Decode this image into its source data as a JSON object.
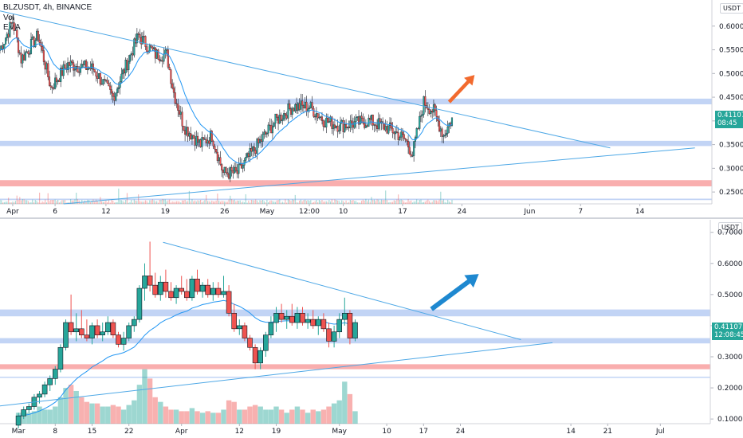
{
  "header": {
    "symbol_line": "BLZUSDT, 4h, BINANCE",
    "indicator_1": "Vol",
    "indicator_2": "EMA"
  },
  "colors": {
    "up": "#26a69a",
    "down": "#ef5350",
    "ema": "#2196f3",
    "trendline": "#4ea8e6",
    "support_zone": "#b7cdf3",
    "red_zone": "#f8a5a5",
    "arrow_top": "#f26a2e",
    "arrow_bottom": "#1e88d0"
  },
  "chart_data": [
    {
      "type": "candlestick",
      "name": "top",
      "unit": "USDT",
      "price_badge": {
        "price": "0.41107",
        "time": "08:45"
      },
      "y_ticks": [
        "0.60000",
        "0.55000",
        "0.50000",
        "0.45000",
        "0.40000",
        "0.35000",
        "0.30000",
        "0.25000"
      ],
      "y_tick_values": [
        0.6,
        0.55,
        0.5,
        0.45,
        0.4,
        0.35,
        0.3,
        0.25
      ],
      "ylim": [
        0.225,
        0.645
      ],
      "x_ticks": [
        "Apr",
        "6",
        "12",
        "19",
        "26",
        "May",
        "12:00",
        "10",
        "17",
        "24",
        "Jun",
        "7",
        "14"
      ],
      "x_tick_days": [
        0,
        5,
        11,
        18,
        25,
        30,
        35,
        39,
        46,
        53,
        61,
        67,
        74
      ],
      "xlim_days": [
        -1.5,
        82.5
      ],
      "zones": [
        {
          "kind": "blue",
          "low": 0.435,
          "high": 0.447
        },
        {
          "kind": "blue",
          "low": 0.347,
          "high": 0.358
        },
        {
          "kind": "red",
          "low": 0.262,
          "high": 0.275
        },
        {
          "kind": "blue",
          "low": 0.233,
          "high": 0.236
        }
      ],
      "trendlines": [
        {
          "from": [
            -1.5,
            0.632
          ],
          "to": [
            70.5,
            0.343
          ]
        },
        {
          "from": [
            6.0,
            0.225
          ],
          "to": [
            80.5,
            0.343
          ]
        }
      ],
      "arrow": {
        "from": [
          51.5,
          0.44
        ],
        "to": [
          54.5,
          0.497
        ],
        "color": "#f26a2e"
      },
      "candles_per_day": 6,
      "start_day": -1.5,
      "volume_max": 0.065,
      "vol_band": [
        0.225,
        0.275
      ],
      "waypoints": [
        [
          0,
          0.55
        ],
        [
          9,
          0.61
        ],
        [
          15,
          0.53
        ],
        [
          27,
          0.58
        ],
        [
          36,
          0.47
        ],
        [
          48,
          0.52
        ],
        [
          66,
          0.51
        ],
        [
          80,
          0.45
        ],
        [
          98,
          0.58
        ],
        [
          110,
          0.54
        ],
        [
          118,
          0.54
        ],
        [
          123,
          0.46
        ],
        [
          130,
          0.39
        ],
        [
          142,
          0.35
        ],
        [
          150,
          0.37
        ],
        [
          158,
          0.29
        ],
        [
          168,
          0.29
        ],
        [
          180,
          0.34
        ],
        [
          195,
          0.4
        ],
        [
          207,
          0.43
        ],
        [
          219,
          0.43
        ],
        [
          230,
          0.4
        ],
        [
          241,
          0.39
        ],
        [
          262,
          0.4
        ],
        [
          278,
          0.38
        ],
        [
          287,
          0.36
        ],
        [
          292,
          0.33
        ],
        [
          300,
          0.44
        ],
        [
          307,
          0.42
        ],
        [
          314,
          0.37
        ],
        [
          321,
          0.41
        ]
      ]
    },
    {
      "type": "candlestick",
      "name": "bottom",
      "unit": "USDT",
      "price_badge": {
        "price": "0.41107",
        "time": "12:08:45"
      },
      "y_ticks": [
        "0.70000",
        "0.60000",
        "0.50000",
        "0.40000",
        "0.30000",
        "0.20000",
        "0.10000"
      ],
      "y_tick_values": [
        0.7,
        0.6,
        0.5,
        0.4,
        0.3,
        0.2,
        0.1
      ],
      "ylim": [
        0.085,
        0.73
      ],
      "x_ticks": [
        "Mar",
        "8",
        "15",
        "22",
        "Apr",
        "12",
        "19",
        "May",
        "10",
        "17",
        "24",
        "14",
        "21",
        "Jul"
      ],
      "x_tick_days": [
        0,
        7,
        14,
        21,
        31,
        42,
        49,
        61,
        70,
        77,
        84,
        105,
        112,
        122
      ],
      "xlim_days": [
        -3.5,
        131.5
      ],
      "zones": [
        {
          "kind": "blue",
          "low": 0.43,
          "high": 0.452
        },
        {
          "kind": "blue",
          "low": 0.343,
          "high": 0.36
        },
        {
          "kind": "red",
          "low": 0.26,
          "high": 0.276
        },
        {
          "kind": "blue",
          "low": 0.234,
          "high": 0.236
        }
      ],
      "trendlines": [
        {
          "from": [
            27.5,
            0.668
          ],
          "to": [
            95.5,
            0.355
          ]
        },
        {
          "from": [
            -3.5,
            0.142
          ],
          "to": [
            101.5,
            0.345
          ]
        }
      ],
      "arrow": {
        "from": [
          78.5,
          0.453
        ],
        "to": [
          87.5,
          0.566
        ],
        "color": "#1e88d0"
      },
      "daily_candles": [
        {
          "o": 0.08,
          "h": 0.12,
          "l": 0.07,
          "c": 0.11
        },
        {
          "o": 0.11,
          "h": 0.14,
          "l": 0.1,
          "c": 0.13
        },
        {
          "o": 0.13,
          "h": 0.15,
          "l": 0.12,
          "c": 0.14
        },
        {
          "o": 0.14,
          "h": 0.18,
          "l": 0.13,
          "c": 0.17
        },
        {
          "o": 0.17,
          "h": 0.19,
          "l": 0.15,
          "c": 0.18
        },
        {
          "o": 0.18,
          "h": 0.22,
          "l": 0.17,
          "c": 0.21
        },
        {
          "o": 0.21,
          "h": 0.24,
          "l": 0.19,
          "c": 0.23
        },
        {
          "o": 0.23,
          "h": 0.27,
          "l": 0.21,
          "c": 0.26
        },
        {
          "o": 0.26,
          "h": 0.34,
          "l": 0.25,
          "c": 0.33
        },
        {
          "o": 0.33,
          "h": 0.42,
          "l": 0.32,
          "c": 0.41
        },
        {
          "o": 0.41,
          "h": 0.5,
          "l": 0.37,
          "c": 0.38
        },
        {
          "o": 0.38,
          "h": 0.44,
          "l": 0.35,
          "c": 0.39
        },
        {
          "o": 0.39,
          "h": 0.45,
          "l": 0.36,
          "c": 0.37
        },
        {
          "o": 0.37,
          "h": 0.42,
          "l": 0.35,
          "c": 0.36
        },
        {
          "o": 0.36,
          "h": 0.41,
          "l": 0.34,
          "c": 0.4
        },
        {
          "o": 0.4,
          "h": 0.42,
          "l": 0.36,
          "c": 0.37
        },
        {
          "o": 0.37,
          "h": 0.41,
          "l": 0.35,
          "c": 0.38
        },
        {
          "o": 0.38,
          "h": 0.43,
          "l": 0.37,
          "c": 0.41
        },
        {
          "o": 0.41,
          "h": 0.42,
          "l": 0.36,
          "c": 0.37
        },
        {
          "o": 0.37,
          "h": 0.38,
          "l": 0.33,
          "c": 0.34
        },
        {
          "o": 0.34,
          "h": 0.38,
          "l": 0.32,
          "c": 0.36
        },
        {
          "o": 0.36,
          "h": 0.41,
          "l": 0.35,
          "c": 0.4
        },
        {
          "o": 0.4,
          "h": 0.43,
          "l": 0.38,
          "c": 0.42
        },
        {
          "o": 0.42,
          "h": 0.53,
          "l": 0.41,
          "c": 0.52
        },
        {
          "o": 0.52,
          "h": 0.6,
          "l": 0.48,
          "c": 0.56
        },
        {
          "o": 0.56,
          "h": 0.67,
          "l": 0.51,
          "c": 0.53
        },
        {
          "o": 0.53,
          "h": 0.57,
          "l": 0.49,
          "c": 0.5
        },
        {
          "o": 0.5,
          "h": 0.56,
          "l": 0.48,
          "c": 0.54
        },
        {
          "o": 0.54,
          "h": 0.58,
          "l": 0.49,
          "c": 0.51
        },
        {
          "o": 0.51,
          "h": 0.54,
          "l": 0.48,
          "c": 0.49
        },
        {
          "o": 0.49,
          "h": 0.53,
          "l": 0.47,
          "c": 0.52
        },
        {
          "o": 0.52,
          "h": 0.56,
          "l": 0.5,
          "c": 0.51
        },
        {
          "o": 0.51,
          "h": 0.55,
          "l": 0.48,
          "c": 0.49
        },
        {
          "o": 0.49,
          "h": 0.56,
          "l": 0.48,
          "c": 0.55
        },
        {
          "o": 0.55,
          "h": 0.58,
          "l": 0.5,
          "c": 0.51
        },
        {
          "o": 0.51,
          "h": 0.54,
          "l": 0.49,
          "c": 0.53
        },
        {
          "o": 0.53,
          "h": 0.55,
          "l": 0.49,
          "c": 0.5
        },
        {
          "o": 0.5,
          "h": 0.54,
          "l": 0.48,
          "c": 0.52
        },
        {
          "o": 0.52,
          "h": 0.54,
          "l": 0.49,
          "c": 0.5
        },
        {
          "o": 0.5,
          "h": 0.56,
          "l": 0.49,
          "c": 0.51
        },
        {
          "o": 0.51,
          "h": 0.53,
          "l": 0.43,
          "c": 0.44
        },
        {
          "o": 0.44,
          "h": 0.47,
          "l": 0.38,
          "c": 0.39
        },
        {
          "o": 0.39,
          "h": 0.42,
          "l": 0.37,
          "c": 0.4
        },
        {
          "o": 0.4,
          "h": 0.41,
          "l": 0.35,
          "c": 0.36
        },
        {
          "o": 0.36,
          "h": 0.37,
          "l": 0.32,
          "c": 0.33
        },
        {
          "o": 0.33,
          "h": 0.34,
          "l": 0.26,
          "c": 0.28
        },
        {
          "o": 0.28,
          "h": 0.33,
          "l": 0.26,
          "c": 0.32
        },
        {
          "o": 0.32,
          "h": 0.38,
          "l": 0.3,
          "c": 0.37
        },
        {
          "o": 0.37,
          "h": 0.43,
          "l": 0.36,
          "c": 0.41
        },
        {
          "o": 0.41,
          "h": 0.46,
          "l": 0.38,
          "c": 0.44
        },
        {
          "o": 0.44,
          "h": 0.47,
          "l": 0.41,
          "c": 0.42
        },
        {
          "o": 0.42,
          "h": 0.45,
          "l": 0.39,
          "c": 0.43
        },
        {
          "o": 0.43,
          "h": 0.47,
          "l": 0.4,
          "c": 0.41
        },
        {
          "o": 0.41,
          "h": 0.46,
          "l": 0.39,
          "c": 0.44
        },
        {
          "o": 0.44,
          "h": 0.46,
          "l": 0.4,
          "c": 0.41
        },
        {
          "o": 0.41,
          "h": 0.44,
          "l": 0.39,
          "c": 0.42
        },
        {
          "o": 0.42,
          "h": 0.45,
          "l": 0.39,
          "c": 0.4
        },
        {
          "o": 0.4,
          "h": 0.43,
          "l": 0.37,
          "c": 0.42
        },
        {
          "o": 0.42,
          "h": 0.44,
          "l": 0.38,
          "c": 0.39
        },
        {
          "o": 0.39,
          "h": 0.41,
          "l": 0.33,
          "c": 0.35
        },
        {
          "o": 0.35,
          "h": 0.4,
          "l": 0.33,
          "c": 0.38
        },
        {
          "o": 0.38,
          "h": 0.44,
          "l": 0.36,
          "c": 0.42
        },
        {
          "o": 0.42,
          "h": 0.49,
          "l": 0.4,
          "c": 0.44
        },
        {
          "o": 0.44,
          "h": 0.45,
          "l": 0.34,
          "c": 0.36
        },
        {
          "o": 0.36,
          "h": 0.42,
          "l": 0.35,
          "c": 0.41
        }
      ],
      "daily_volume": [
        0.12,
        0.115,
        0.12,
        0.125,
        0.14,
        0.13,
        0.13,
        0.14,
        0.17,
        0.2,
        0.21,
        0.19,
        0.17,
        0.155,
        0.15,
        0.15,
        0.14,
        0.14,
        0.145,
        0.14,
        0.13,
        0.145,
        0.16,
        0.21,
        0.26,
        0.23,
        0.17,
        0.155,
        0.14,
        0.13,
        0.13,
        0.125,
        0.125,
        0.135,
        0.125,
        0.12,
        0.125,
        0.12,
        0.12,
        0.13,
        0.16,
        0.155,
        0.13,
        0.13,
        0.14,
        0.145,
        0.14,
        0.13,
        0.13,
        0.14,
        0.13,
        0.12,
        0.13,
        0.14,
        0.13,
        0.12,
        0.13,
        0.125,
        0.13,
        0.14,
        0.15,
        0.16,
        0.22,
        0.18,
        0.125
      ],
      "volume_tick": "0.10000"
    }
  ]
}
